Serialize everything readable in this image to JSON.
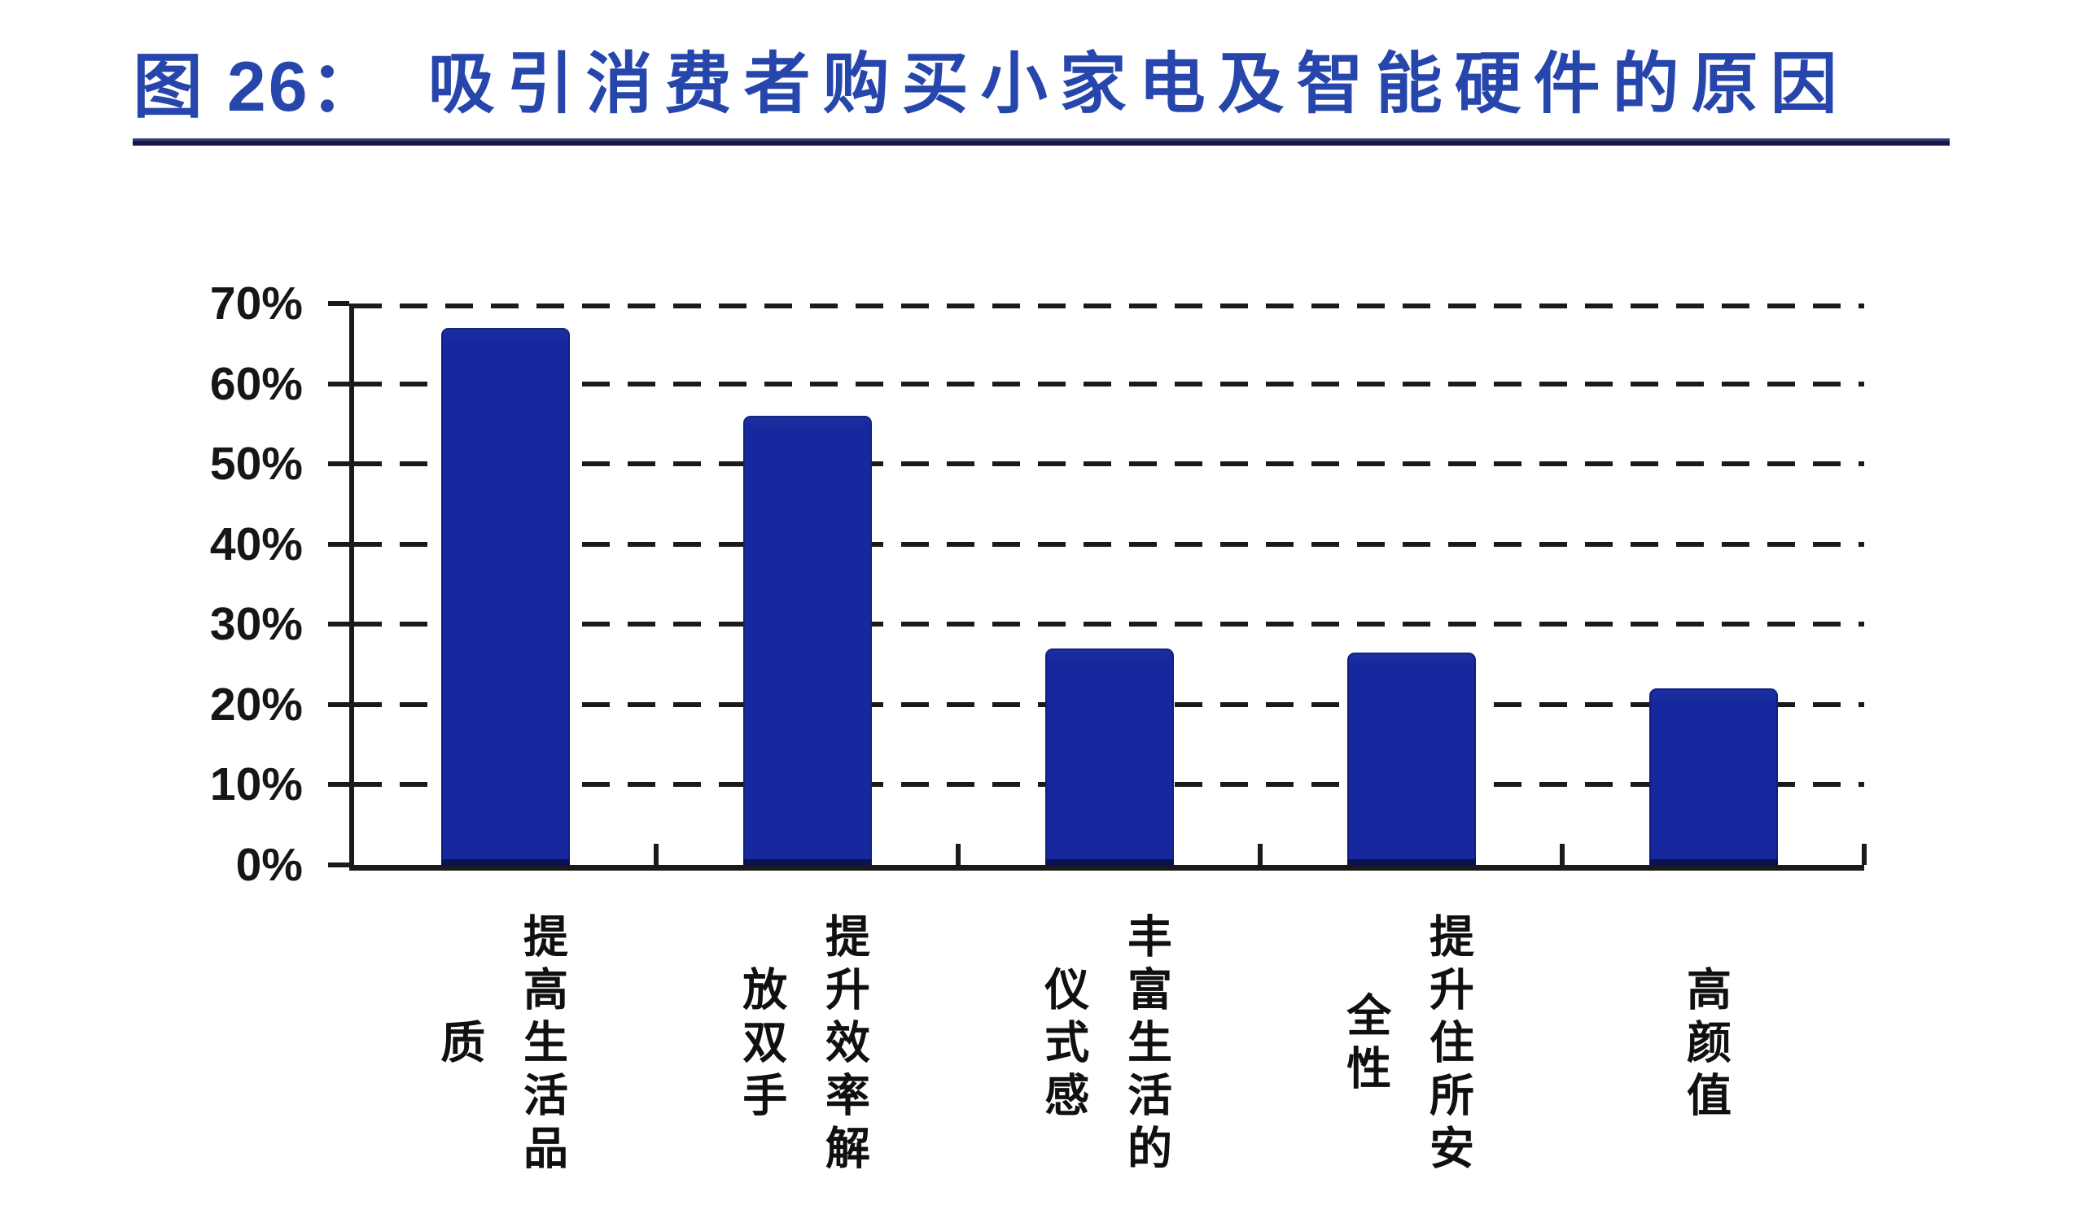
{
  "title": {
    "figure_label": "图 26：",
    "text": "吸引消费者购买小家电及智能硬件的原因"
  },
  "colors": {
    "title_text": "#2646ac",
    "title_rule": "#10123c",
    "bar_fill": "#16289e",
    "axis": "#1a1a1a",
    "tick_label": "#161616",
    "background": "#ffffff"
  },
  "chart_data": {
    "type": "bar",
    "title": "吸引消费者购买小家电及智能硬件的原因",
    "categories": [
      "提高生活品质",
      "提升效率解放双手",
      "丰富生活的仪式感",
      "提升住所安全性",
      "高颜值"
    ],
    "values": [
      67,
      56,
      27,
      26.5,
      22
    ],
    "unit": "%",
    "xlabel": "",
    "ylabel": "",
    "ylim": [
      0,
      70
    ],
    "ytick_interval": 10,
    "ytick_labels": [
      "0%",
      "10%",
      "20%",
      "30%",
      "40%",
      "50%",
      "60%",
      "70%"
    ],
    "grid": "horizontal-dashed",
    "legend_position": "none",
    "bar_color": "#16289e",
    "category_text_orientation": "vertical-stacked"
  }
}
